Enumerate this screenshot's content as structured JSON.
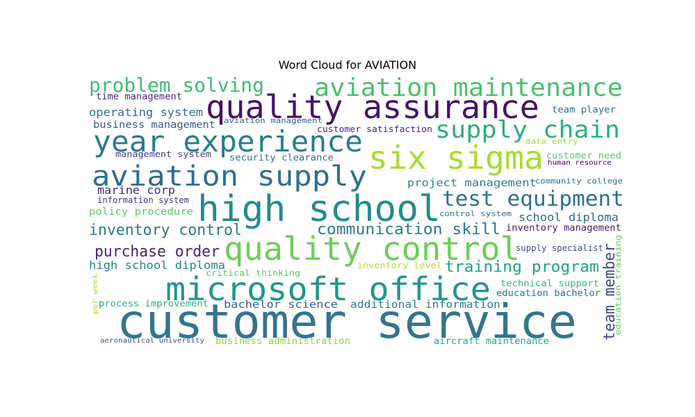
{
  "chart_data": {
    "type": "wordcloud",
    "title": "Word Cloud for AVIATION",
    "words": [
      {
        "text": "customer service",
        "weight": 1.0,
        "color": "#33758d"
      },
      {
        "text": "quality assurance",
        "weight": 0.78,
        "color": "#471164"
      },
      {
        "text": "high school",
        "weight": 0.82,
        "color": "#238a8d"
      },
      {
        "text": "quality control",
        "weight": 0.74,
        "color": "#6ccd5a"
      },
      {
        "text": "microsoft office",
        "weight": 0.76,
        "color": "#1f968b"
      },
      {
        "text": "six sigma",
        "weight": 0.74,
        "color": "#a8db34"
      },
      {
        "text": "year experience",
        "weight": 0.7,
        "color": "#287d8e"
      },
      {
        "text": "aviation supply",
        "weight": 0.68,
        "color": "#2d6f8e"
      },
      {
        "text": "aviation maintenance",
        "weight": 0.58,
        "color": "#4ac16d"
      },
      {
        "text": "supply chain",
        "weight": 0.55,
        "color": "#2ab07f"
      },
      {
        "text": "test equipment",
        "weight": 0.49,
        "color": "#2c718e"
      },
      {
        "text": "problem solving",
        "weight": 0.44,
        "color": "#3dbc74"
      },
      {
        "text": "communication skill",
        "weight": 0.36,
        "color": "#29798e"
      },
      {
        "text": "team member",
        "weight": 0.36,
        "color": "#3e4a89"
      },
      {
        "text": "training program",
        "weight": 0.35,
        "color": "#1fa187"
      },
      {
        "text": "inventory control",
        "weight": 0.35,
        "color": "#2a788e"
      },
      {
        "text": "purchase order",
        "weight": 0.35,
        "color": "#482576"
      },
      {
        "text": "marine corp",
        "weight": 0.27,
        "color": "#482878"
      },
      {
        "text": "operating system",
        "weight": 0.27,
        "color": "#2c728e"
      },
      {
        "text": "high school diploma",
        "weight": 0.27,
        "color": "#25848e"
      },
      {
        "text": "school diploma",
        "weight": 0.27,
        "color": "#31678e"
      },
      {
        "text": "project management",
        "weight": 0.25,
        "color": "#26828e"
      },
      {
        "text": "bachelor science",
        "weight": 0.25,
        "color": "#33638d"
      },
      {
        "text": "additional information",
        "weight": 0.25,
        "color": "#287c8e"
      },
      {
        "text": "business management",
        "weight": 0.23,
        "color": "#375a8c"
      },
      {
        "text": "policy procedure",
        "weight": 0.23,
        "color": "#5ec962"
      },
      {
        "text": "inventory management",
        "weight": 0.22,
        "color": "#481769"
      },
      {
        "text": "education bachelor",
        "weight": 0.22,
        "color": "#2c728e"
      },
      {
        "text": "aircraft maintenance",
        "weight": 0.22,
        "color": "#22a884"
      },
      {
        "text": "process improvement",
        "weight": 0.22,
        "color": "#2ab07f"
      },
      {
        "text": "business administration",
        "weight": 0.22,
        "color": "#90d743"
      },
      {
        "text": "technical support",
        "weight": 0.22,
        "color": "#35b779"
      },
      {
        "text": "team player",
        "weight": 0.21,
        "color": "#2e6e8e"
      },
      {
        "text": "time management",
        "weight": 0.2,
        "color": "#482878"
      },
      {
        "text": "customer satisfaction",
        "weight": 0.2,
        "color": "#482475"
      },
      {
        "text": "customer need",
        "weight": 0.2,
        "color": "#5ec962"
      },
      {
        "text": "security clearance",
        "weight": 0.2,
        "color": "#2a778e"
      },
      {
        "text": "management system",
        "weight": 0.19,
        "color": "#424086"
      },
      {
        "text": "information system",
        "weight": 0.19,
        "color": "#443983"
      },
      {
        "text": "inventory level",
        "weight": 0.19,
        "color": "#b5de2b"
      },
      {
        "text": "critical thinking",
        "weight": 0.19,
        "color": "#5ec962"
      },
      {
        "text": "supply specialist",
        "weight": 0.19,
        "color": "#3e4c8a"
      },
      {
        "text": "control system",
        "weight": 0.18,
        "color": "#2c728e"
      },
      {
        "text": "community college",
        "weight": 0.18,
        "color": "#2d708e"
      },
      {
        "text": "aviation management",
        "weight": 0.18,
        "color": "#365c8d"
      },
      {
        "text": "human resource",
        "weight": 0.17,
        "color": "#440154"
      },
      {
        "text": "data entry",
        "weight": 0.17,
        "color": "#a0da39"
      },
      {
        "text": "education training",
        "weight": 0.17,
        "color": "#5ec962"
      },
      {
        "text": "aeronautical university",
        "weight": 0.17,
        "color": "#3b528b"
      },
      {
        "text": "per week",
        "weight": 0.16,
        "color": "#a0da39"
      }
    ]
  }
}
